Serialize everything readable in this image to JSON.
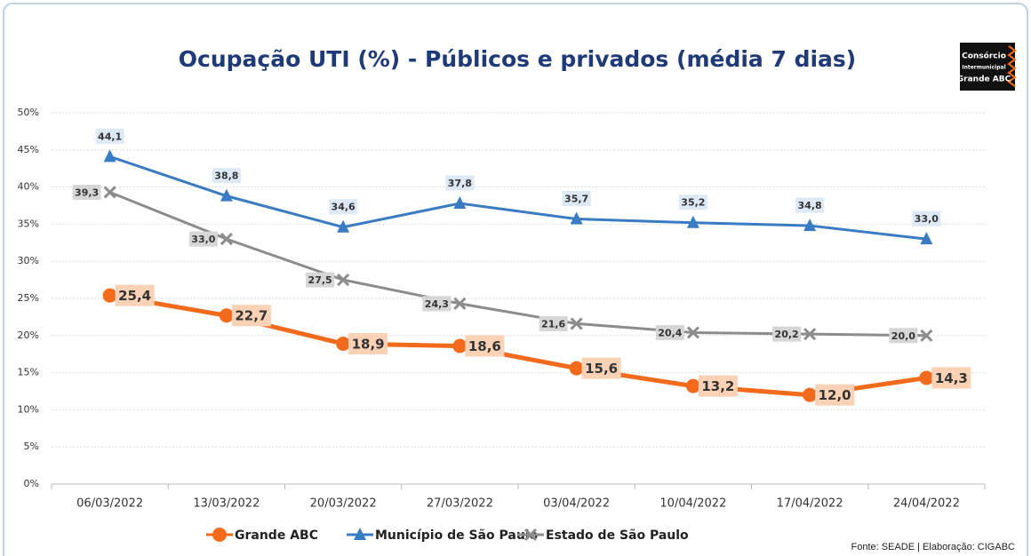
{
  "chart_data": {
    "type": "line",
    "title": "Ocupação UTI (%) - Públicos e privados (média 7 dias)",
    "logo": [
      "Consórcio",
      "Intermunicipal",
      "Grande ABC"
    ],
    "source": "Fonte: SEADE  |  Elaboração: CIGABC",
    "categories": [
      "06/03/2022",
      "13/03/2022",
      "20/03/2022",
      "27/03/2022",
      "03/04/2022",
      "10/04/2022",
      "17/04/2022",
      "24/04/2022"
    ],
    "series": [
      {
        "name": "Grande ABC",
        "color": "#f26b1d",
        "marker": "circle",
        "values": [
          25.4,
          22.7,
          18.9,
          18.6,
          15.6,
          13.2,
          12.0,
          14.3
        ],
        "value_labels": [
          "25,4",
          "22,7",
          "18,9",
          "18,6",
          "15,6",
          "13,2",
          "12,0",
          "14,3"
        ]
      },
      {
        "name": "Município de São Paulo",
        "color": "#3a7cc4",
        "marker": "triangle",
        "values": [
          44.1,
          38.8,
          34.6,
          37.8,
          35.7,
          35.2,
          34.8,
          33.0
        ],
        "value_labels": [
          "44,1",
          "38,8",
          "34,6",
          "37,8",
          "35,7",
          "35,2",
          "34,8",
          "33,0"
        ]
      },
      {
        "name": "Estado de São Paulo",
        "color": "#8c8c8c",
        "marker": "cross",
        "values": [
          39.3,
          33.0,
          27.5,
          24.3,
          21.6,
          20.4,
          20.2,
          20.0
        ],
        "value_labels": [
          "39,3",
          "33,0",
          "27,5",
          "24,3",
          "21,6",
          "20,4",
          "20,2",
          "20,0"
        ]
      }
    ],
    "ylim": [
      0,
      50
    ],
    "yticks": [
      {
        "value": 0,
        "label": "0%"
      },
      {
        "value": 5,
        "label": "5%"
      },
      {
        "value": 10,
        "label": "10%"
      },
      {
        "value": 15,
        "label": "15%"
      },
      {
        "value": 20,
        "label": "20%"
      },
      {
        "value": 25,
        "label": "25%"
      },
      {
        "value": 30,
        "label": "30%"
      },
      {
        "value": 35,
        "label": "35%"
      },
      {
        "value": 40,
        "label": "40%"
      },
      {
        "value": 45,
        "label": "45%"
      },
      {
        "value": 50,
        "label": "50%"
      }
    ],
    "grid": true
  }
}
